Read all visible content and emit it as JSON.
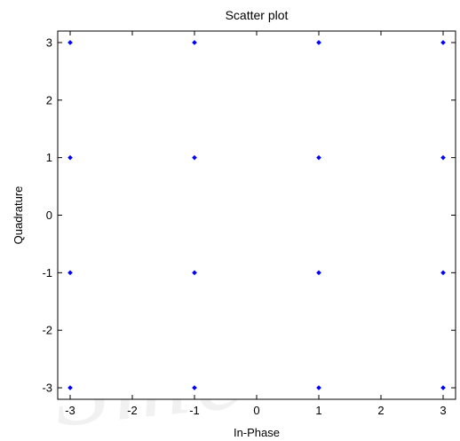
{
  "chart_data": {
    "type": "scatter",
    "title": "Scatter plot",
    "xlabel": "In-Phase",
    "ylabel": "Quadrature",
    "xlim": [
      -3.2,
      3.2
    ],
    "ylim": [
      -3.2,
      3.2
    ],
    "xticks": [
      -3,
      -2,
      -1,
      0,
      1,
      2,
      3
    ],
    "yticks": [
      -3,
      -2,
      -1,
      0,
      1,
      2,
      3
    ],
    "xtick_labels": [
      "-3",
      "-2",
      "-1",
      "0",
      "1",
      "2",
      "3"
    ],
    "ytick_labels": [
      "-3",
      "-2",
      "-1",
      "0",
      "1",
      "2",
      "3"
    ],
    "grid": false,
    "marker_color": "#0000ff",
    "points": [
      {
        "x": -3,
        "y": 3
      },
      {
        "x": -1,
        "y": 3
      },
      {
        "x": 1,
        "y": 3
      },
      {
        "x": 3,
        "y": 3
      },
      {
        "x": -3,
        "y": 1
      },
      {
        "x": -1,
        "y": 1
      },
      {
        "x": 1,
        "y": 1
      },
      {
        "x": 3,
        "y": 1
      },
      {
        "x": -3,
        "y": -1
      },
      {
        "x": -1,
        "y": -1
      },
      {
        "x": 1,
        "y": -1
      },
      {
        "x": 3,
        "y": -1
      },
      {
        "x": -3,
        "y": -3
      },
      {
        "x": -1,
        "y": -3
      },
      {
        "x": 1,
        "y": -3
      },
      {
        "x": 3,
        "y": -3
      }
    ]
  }
}
